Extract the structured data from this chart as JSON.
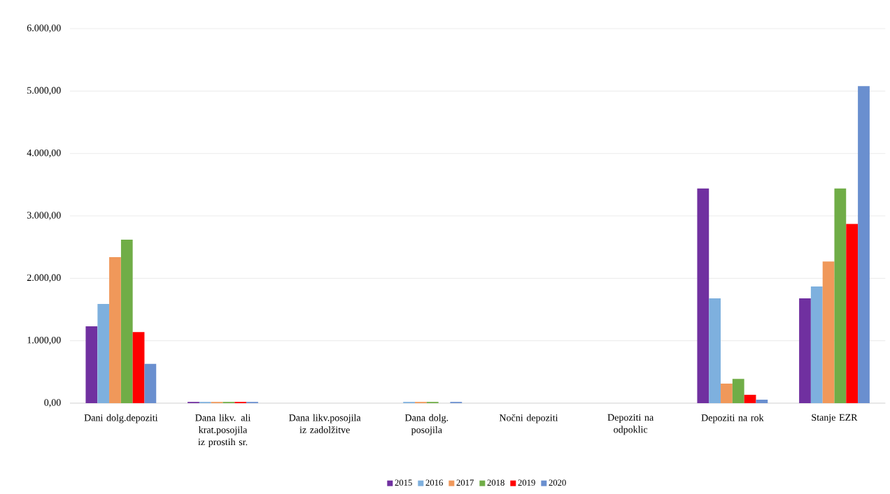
{
  "chart_data": {
    "type": "bar",
    "categories": [
      "Dani dolg.depoziti",
      "Dana likv. ali krat.posojila iz prostih sr.",
      "Dana likv.posojila iz zadolžitve",
      "Dana dolg. posojila",
      "Nočni depoziti",
      "Depoziti na odpoklic",
      "Depoziti na rok",
      "Stanje EZR"
    ],
    "series": [
      {
        "name": "2015",
        "color": "#7030a0",
        "values": [
          1230,
          20,
          0,
          0,
          0,
          0,
          3440,
          1680
        ]
      },
      {
        "name": "2016",
        "color": "#7eb0de",
        "values": [
          1590,
          20,
          0,
          20,
          0,
          0,
          1680,
          1870
        ]
      },
      {
        "name": "2017",
        "color": "#f0985a",
        "values": [
          2340,
          20,
          0,
          20,
          0,
          0,
          314,
          2270
        ]
      },
      {
        "name": "2018",
        "color": "#70ad47",
        "values": [
          2620,
          20,
          0,
          20,
          0,
          0,
          390,
          3440
        ]
      },
      {
        "name": "2019",
        "color": "#ff0000",
        "values": [
          1140,
          20,
          0,
          0,
          0,
          0,
          134,
          2870
        ]
      },
      {
        "name": "2020",
        "color": "#6a8fcf",
        "values": [
          630,
          20,
          0,
          20,
          0,
          0,
          56,
          5080
        ]
      }
    ],
    "ylim": [
      0,
      6000
    ],
    "yticks": [
      {
        "value": 0,
        "label": "0,00"
      },
      {
        "value": 1000,
        "label": "1.000,00"
      },
      {
        "value": 2000,
        "label": "2.000,00"
      },
      {
        "value": 3000,
        "label": "3.000,00"
      },
      {
        "value": 4000,
        "label": "4.000,00"
      },
      {
        "value": 5000,
        "label": "5.000,00"
      },
      {
        "value": 6000,
        "label": "6.000,00"
      }
    ],
    "grid": "y",
    "legend": "bottom"
  }
}
